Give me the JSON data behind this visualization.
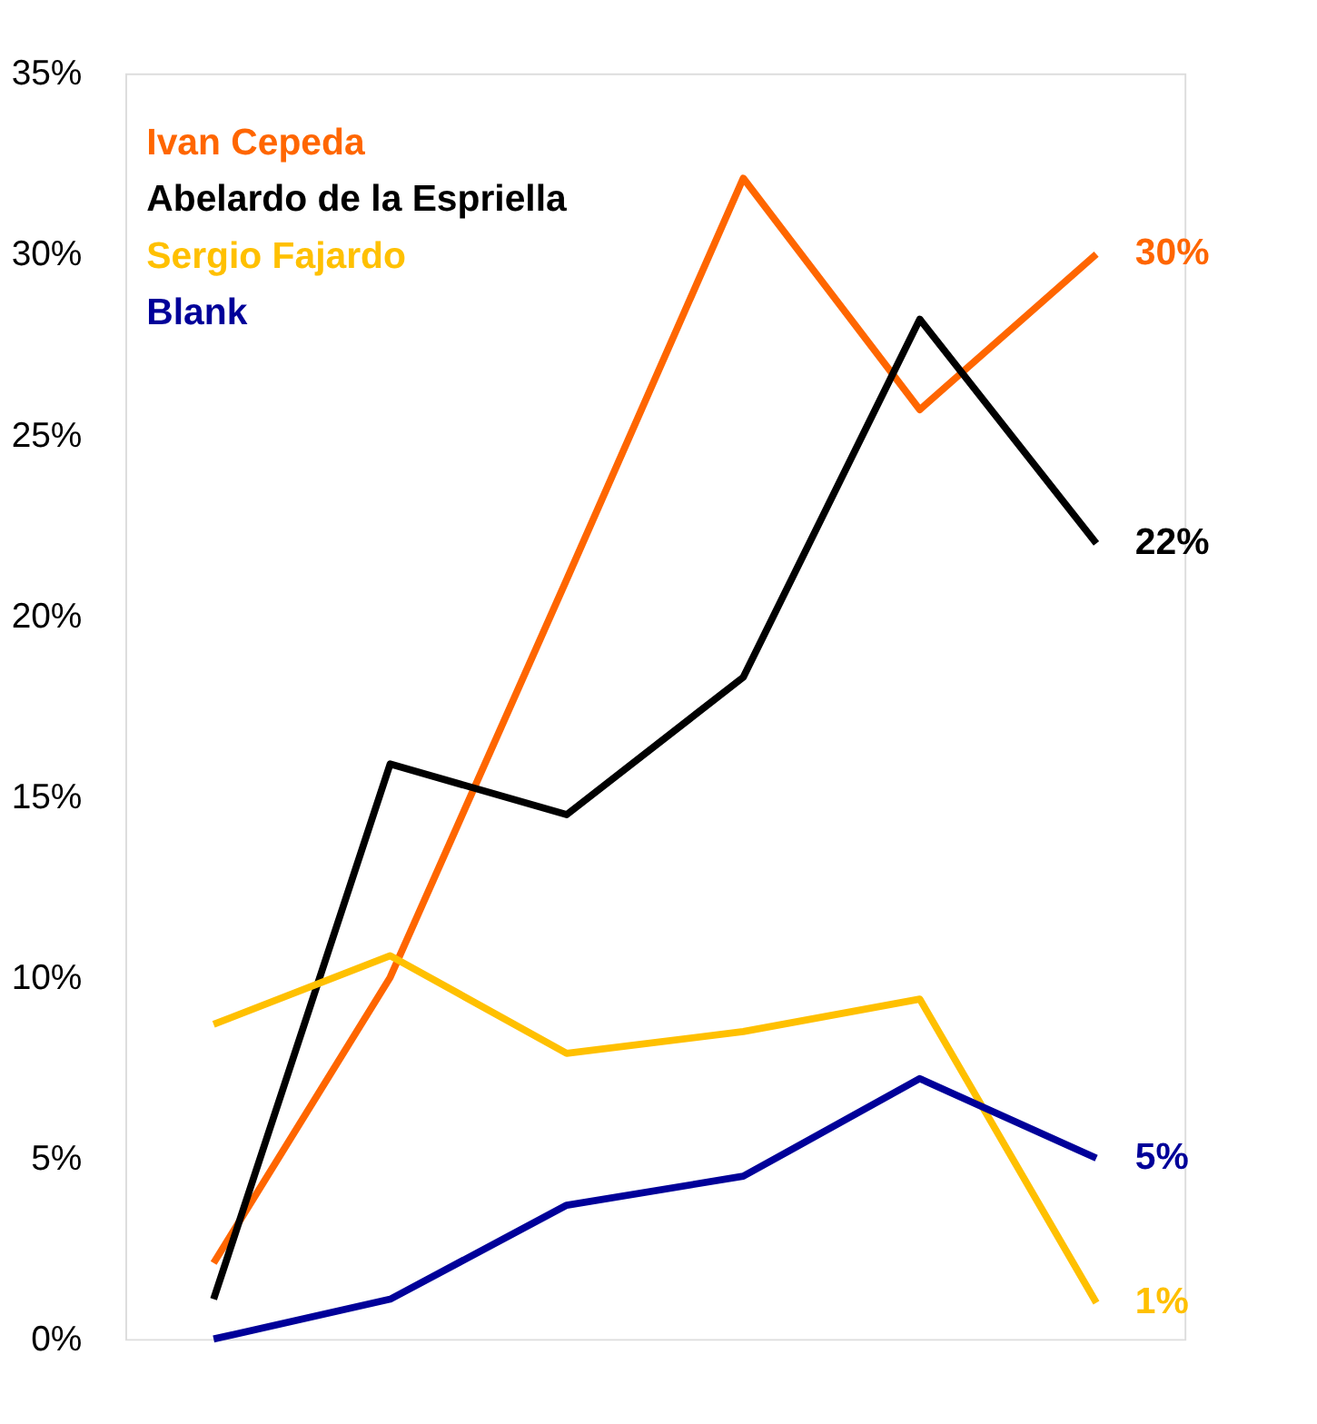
{
  "chart_data": {
    "type": "line",
    "categories": [
      null,
      null,
      null,
      null,
      null,
      null
    ],
    "series": [
      {
        "name": "Ivan Cepeda",
        "color": "#ff6600",
        "values": [
          2.1,
          10.0,
          21.0,
          32.1,
          25.7,
          30
        ],
        "value_labels": [
          null,
          null,
          null,
          null,
          null,
          "30%"
        ]
      },
      {
        "name": "Abelardo de la Espriella",
        "color": "#000000",
        "values": [
          1.1,
          15.9,
          14.5,
          18.3,
          28.2,
          22
        ],
        "value_labels": [
          null,
          null,
          null,
          null,
          null,
          "22%"
        ]
      },
      {
        "name": "Sergio Fajardo",
        "color": "#ffc000",
        "values": [
          8.7,
          10.6,
          7.9,
          8.5,
          9.4,
          1
        ],
        "value_labels": [
          null,
          null,
          null,
          null,
          null,
          "1%"
        ]
      },
      {
        "name": "Blank",
        "color": "#000099",
        "values": [
          0,
          1.1,
          3.7,
          4.5,
          7.2,
          5
        ],
        "value_labels": [
          null,
          null,
          null,
          null,
          null,
          "5%"
        ]
      }
    ],
    "ylim": [
      0,
      35
    ],
    "yticks": [
      {
        "value": 0,
        "label": "0%"
      },
      {
        "value": 5,
        "label": "5%"
      },
      {
        "value": 10,
        "label": "10%"
      },
      {
        "value": 15,
        "label": "15%"
      },
      {
        "value": 20,
        "label": "20%"
      },
      {
        "value": 25,
        "label": "25%"
      },
      {
        "value": 30,
        "label": "30%"
      },
      {
        "value": 35,
        "label": "35%"
      }
    ],
    "grid": false,
    "legend": "top left",
    "marker": "none",
    "line_style": "solid",
    "tick_labels": "y"
  }
}
